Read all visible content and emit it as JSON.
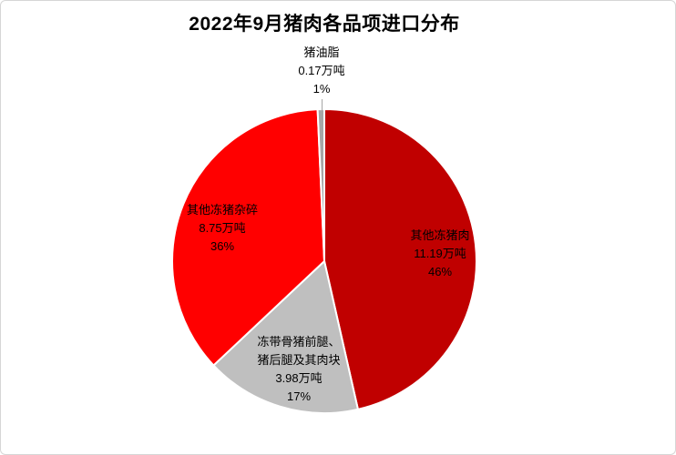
{
  "chart_data": {
    "type": "pie",
    "title": "2022年9月猪肉各品项进口分布",
    "unit": "万吨",
    "start_angle_deg": 0,
    "direction": "clockwise",
    "total": 24.09,
    "slices": [
      {
        "label": "其他冻猪肉",
        "value": 11.19,
        "value_label": "11.19万吨",
        "percent_label": "46%",
        "color": "#C00000"
      },
      {
        "label": "冻带骨猪前腿、猪后腿及其肉块",
        "label_line1": "冻带骨猪前腿、",
        "label_line2": "猪后腿及其肉块",
        "value": 3.98,
        "value_label": "3.98万吨",
        "percent_label": "17%",
        "color": "#BFBFBF"
      },
      {
        "label": "其他冻猪杂碎",
        "value": 8.75,
        "value_label": "8.75万吨",
        "percent_label": "36%",
        "color": "#FF0000"
      },
      {
        "label": "猪油脂",
        "value": 0.17,
        "value_label": "0.17万吨",
        "percent_label": "1%",
        "color": "#A6A6A6"
      }
    ],
    "slice_border_color": "#FFFFFF",
    "frame_border_color": "#D6D6D6",
    "background_color": "#FFFFFF",
    "label_text_color": "#000000"
  }
}
